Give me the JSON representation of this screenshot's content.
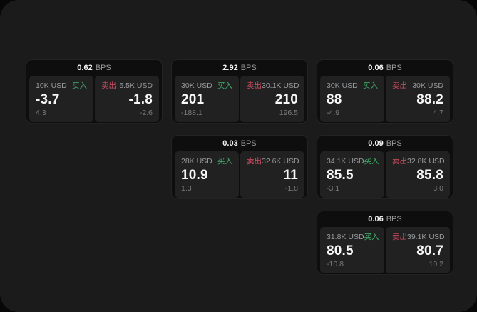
{
  "labels": {
    "bps_unit": "BPS",
    "buy": "买入",
    "sell": "卖出"
  },
  "colors": {
    "panel_background": "#1b1b1c",
    "card_background": "#0e0e0f",
    "tile_background": "#212122",
    "buy_green": "#43b06a",
    "sell_red": "#d14f61",
    "price_white": "#f7f7f7",
    "label_gray": "#989a9c",
    "delta_gray": "#7b7b7b"
  },
  "cards": [
    {
      "bps": "0.62",
      "buy": {
        "notional": "10K USD",
        "price": "-3.7",
        "delta": "4.3"
      },
      "sell": {
        "notional": "5.5K USD",
        "price": "-1.8",
        "delta": "-2.6"
      }
    },
    {
      "bps": "2.92",
      "buy": {
        "notional": "30K USD",
        "price": "201",
        "delta": "-188.1"
      },
      "sell": {
        "notional": "30.1K USD",
        "price": "210",
        "delta": "196.5"
      }
    },
    {
      "bps": "0.06",
      "buy": {
        "notional": "30K USD",
        "price": "88",
        "delta": "-4.9"
      },
      "sell": {
        "notional": "30K USD",
        "price": "88.2",
        "delta": "4.7"
      }
    },
    {
      "bps": "0.03",
      "buy": {
        "notional": "28K USD",
        "price": "10.9",
        "delta": "1.3"
      },
      "sell": {
        "notional": "32.6K USD",
        "price": "11",
        "delta": "-1.8"
      }
    },
    {
      "bps": "0.09",
      "buy": {
        "notional": "34.1K USD",
        "price": "85.5",
        "delta": "-3.1"
      },
      "sell": {
        "notional": "32.8K USD",
        "price": "85.8",
        "delta": "3.0"
      }
    },
    {
      "bps": "0.06",
      "buy": {
        "notional": "31.8K USD",
        "price": "80.5",
        "delta": "-10.8"
      },
      "sell": {
        "notional": "39.1K USD",
        "price": "80.7",
        "delta": "10.2"
      }
    }
  ]
}
